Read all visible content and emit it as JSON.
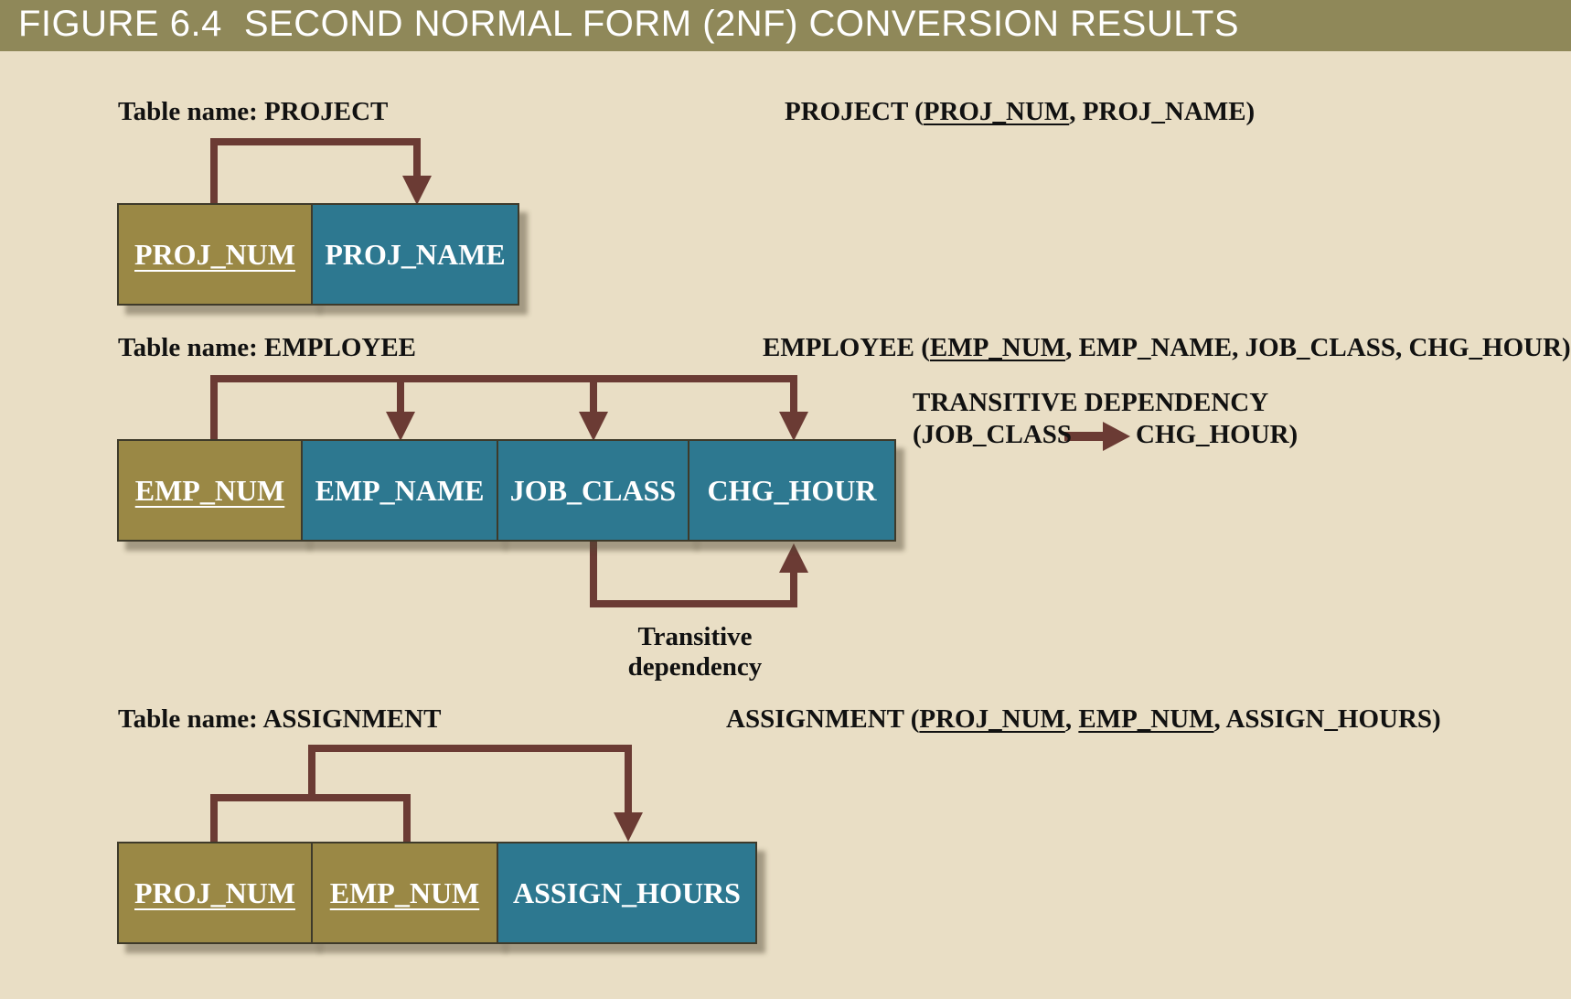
{
  "figure": {
    "number": "FIGURE 6.4",
    "title": "SECOND NORMAL FORM (2NF) CONVERSION RESULTS"
  },
  "colors": {
    "header_bar": "#8f8859",
    "background": "#e9dec5",
    "key_cell": "#9a8845",
    "attribute_cell": "#2d7890",
    "arrow": "#6b3b34"
  },
  "project": {
    "label": "Table name: PROJECT",
    "schema_name": "PROJECT (",
    "schema_pk": "PROJ_NUM",
    "schema_rest": ", PROJ_NAME)",
    "columns": [
      "PROJ_NUM",
      "PROJ_NAME"
    ]
  },
  "employee": {
    "label": "Table name: EMPLOYEE",
    "schema_name": "EMPLOYEE (",
    "schema_pk": "EMP_NUM",
    "schema_rest": ", EMP_NAME, JOB_CLASS, CHG_HOUR)",
    "columns": [
      "EMP_NUM",
      "EMP_NAME",
      "JOB_CLASS",
      "CHG_HOUR"
    ],
    "transitive_title": "TRANSITIVE DEPENDENCY",
    "transitive_from": "(JOB_CLASS",
    "transitive_to": "CHG_HOUR)",
    "transitive_note_line1": "Transitive",
    "transitive_note_line2": "dependency"
  },
  "assignment": {
    "label": "Table name: ASSIGNMENT",
    "schema_name": "ASSIGNMENT (",
    "schema_pk1": "PROJ_NUM",
    "schema_sep": ", ",
    "schema_pk2": "EMP_NUM",
    "schema_rest": ", ASSIGN_HOURS)",
    "columns": [
      "PROJ_NUM",
      "EMP_NUM",
      "ASSIGN_HOURS"
    ]
  }
}
